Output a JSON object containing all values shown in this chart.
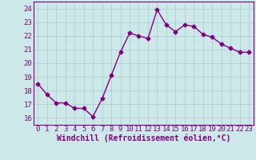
{
  "x": [
    0,
    1,
    2,
    3,
    4,
    5,
    6,
    7,
    8,
    9,
    10,
    11,
    12,
    13,
    14,
    15,
    16,
    17,
    18,
    19,
    20,
    21,
    22,
    23
  ],
  "y": [
    18.5,
    17.7,
    17.1,
    17.1,
    16.7,
    16.7,
    16.1,
    17.4,
    19.1,
    20.8,
    22.2,
    22.0,
    21.8,
    23.9,
    22.8,
    22.3,
    22.8,
    22.7,
    22.1,
    21.9,
    21.4,
    21.1,
    20.8,
    20.8
  ],
  "line_color": "#800080",
  "marker": "D",
  "marker_size": 2.5,
  "bg_color": "#cce8e8",
  "grid_color": "#aacccc",
  "xlabel": "Windchill (Refroidissement éolien,°C)",
  "xlabel_fontsize": 7,
  "xlim": [
    -0.5,
    23.5
  ],
  "ylim": [
    15.5,
    24.5
  ],
  "yticks": [
    16,
    17,
    18,
    19,
    20,
    21,
    22,
    23,
    24
  ],
  "xticks": [
    0,
    1,
    2,
    3,
    4,
    5,
    6,
    7,
    8,
    9,
    10,
    11,
    12,
    13,
    14,
    15,
    16,
    17,
    18,
    19,
    20,
    21,
    22,
    23
  ],
  "tick_fontsize": 6.5,
  "linewidth": 1.0
}
